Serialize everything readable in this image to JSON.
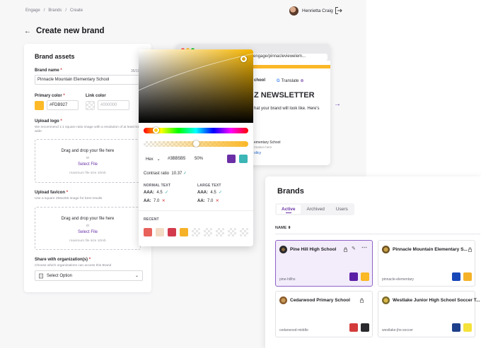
{
  "breadcrumb": [
    "Engage",
    "/",
    "Brands",
    "/",
    "Create"
  ],
  "user": {
    "name": "Henrietta Craig"
  },
  "page": {
    "title": "Create new brand"
  },
  "assets": {
    "heading": "Brand assets",
    "brand_name_label": "Brand name",
    "brand_name_value": "Pinnacle Mountain Elementary School",
    "char_count": "35/100",
    "primary_color_label": "Primary color",
    "primary_color_value": "#FDB927",
    "link_color_label": "Link color",
    "link_color_placeholder": "#000000",
    "logo_label": "Upload logo",
    "logo_help": "We recommend 1:1 square ratio image with a resolution of at least 512px wide",
    "favicon_label": "Upload favicon",
    "favicon_help": "Use a square 256x256 image for best results",
    "drop_text": "Drag and drop your file here",
    "or_text": "or",
    "select_file": "Select File",
    "max_size": "maximum file size 10mb",
    "share_label": "Share with organization(s)",
    "share_help": "Choose which organizations can access this Brand",
    "select_option": "Select Option",
    "required_mark": "*"
  },
  "browser": {
    "url": "com/engage/pinnacleviewelem...",
    "school_short": "chool",
    "translate": "Translate",
    "newsletter": "Z NEWSLETTER",
    "preview_text": "hat your brand will look like. Here's",
    "footer_school": "ementary School",
    "footer_sub": "rmation here",
    "policy": "olicy",
    "accent_color": "#fbb827"
  },
  "picker": {
    "mode": "Hex",
    "hex": "#3BB5B5",
    "opacity": "50%",
    "contrast_label": "Contrast ratio",
    "contrast_value": "10.37",
    "normal_text": "NORMAL TEXT",
    "large_text": "LARGE TEXT",
    "aaa": "AAA:",
    "aa": "AA:",
    "normal_aaa": "4.5",
    "normal_aa": "7.0",
    "large_aaa": "4.5",
    "large_aa": "7.0",
    "recent_label": "RECENT",
    "swatch_a": "#6a2fa6",
    "swatch_b": "#3bb5b5",
    "recent_colors": [
      "#e8615b",
      "#f3dcc5",
      "#d33b4c",
      "#f5b228"
    ]
  },
  "brands": {
    "heading": "Brands",
    "tabs": [
      "Active",
      "Archived",
      "Users"
    ],
    "col_name": "NAME",
    "items": [
      {
        "name": "Pine Hill High School",
        "slug": "pine-hillhs",
        "colors": [
          "#5b1fa6",
          "#fbb827"
        ]
      },
      {
        "name": "Pinnacle Mountain Elementary S...",
        "slug": "pinnacle-elementary",
        "colors": [
          "#1848b8",
          "#f5b228"
        ]
      },
      {
        "name": "Cedarwood Primary School",
        "slug": "cedarwood-middle",
        "colors": [
          "#d33b3b",
          "#2a2a2e"
        ]
      },
      {
        "name": "Westlake Junior High School Soccer T...",
        "slug": "westlake-jhs-soccer",
        "colors": [
          "#1e3f8a",
          "#f5e23a"
        ]
      }
    ]
  }
}
